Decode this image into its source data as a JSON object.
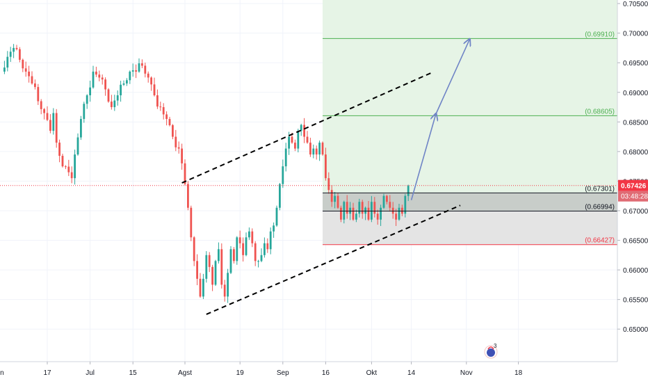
{
  "chart_data": {
    "type": "candlestick",
    "title": "",
    "xlabel": "",
    "ylabel": "",
    "ylim": [
      0.6445,
      0.7056
    ],
    "y_ticks": [
      0.705,
      0.7,
      0.695,
      0.69,
      0.685,
      0.68,
      0.675,
      0.67,
      0.665,
      0.66,
      0.655,
      0.65
    ],
    "y_tick_labels": [
      "0.70500",
      "0.70000",
      "0.69500",
      "0.69000",
      "0.68500",
      "0.68000",
      "0.67500",
      "0.67000",
      "0.66500",
      "0.66000",
      "0.65500",
      "0.65000"
    ],
    "x_ticks": [
      {
        "label": "Jun",
        "day": -1
      },
      {
        "label": "17",
        "day": 15
      },
      {
        "label": "Jul",
        "day": 29
      },
      {
        "label": "15",
        "day": 43
      },
      {
        "label": "Agst",
        "day": 60
      },
      {
        "label": "19",
        "day": 78
      },
      {
        "label": "Sep",
        "day": 92
      },
      {
        "label": "16",
        "day": 106
      },
      {
        "label": "Okt",
        "day": 121
      },
      {
        "label": "14",
        "day": 134
      },
      {
        "label": "Nov",
        "day": 152
      },
      {
        "label": "18",
        "day": 169
      }
    ],
    "closes": [
      {
        "day": 0,
        "v": 0.6935
      },
      {
        "day": 2,
        "v": 0.696
      },
      {
        "day": 4,
        "v": 0.6975
      },
      {
        "day": 6,
        "v": 0.6955
      },
      {
        "day": 8,
        "v": 0.6935
      },
      {
        "day": 10,
        "v": 0.6915
      },
      {
        "day": 12,
        "v": 0.6885
      },
      {
        "day": 14,
        "v": 0.6865
      },
      {
        "day": 16,
        "v": 0.6835
      },
      {
        "day": 17,
        "v": 0.6865
      },
      {
        "day": 18,
        "v": 0.6815
      },
      {
        "day": 20,
        "v": 0.6775
      },
      {
        "day": 22,
        "v": 0.6765
      },
      {
        "day": 23,
        "v": 0.6755
      },
      {
        "day": 24,
        "v": 0.6795
      },
      {
        "day": 26,
        "v": 0.6855
      },
      {
        "day": 28,
        "v": 0.6895
      },
      {
        "day": 30,
        "v": 0.6935
      },
      {
        "day": 32,
        "v": 0.6925
      },
      {
        "day": 34,
        "v": 0.6905
      },
      {
        "day": 36,
        "v": 0.6875
      },
      {
        "day": 38,
        "v": 0.6895
      },
      {
        "day": 40,
        "v": 0.6915
      },
      {
        "day": 42,
        "v": 0.6935
      },
      {
        "day": 44,
        "v": 0.6935
      },
      {
        "day": 46,
        "v": 0.6945
      },
      {
        "day": 48,
        "v": 0.6925
      },
      {
        "day": 50,
        "v": 0.6895
      },
      {
        "day": 52,
        "v": 0.6875
      },
      {
        "day": 54,
        "v": 0.6855
      },
      {
        "day": 56,
        "v": 0.6825
      },
      {
        "day": 58,
        "v": 0.6805
      },
      {
        "day": 59,
        "v": 0.678
      },
      {
        "day": 60,
        "v": 0.6745
      },
      {
        "day": 61,
        "v": 0.6705
      },
      {
        "day": 62,
        "v": 0.6655
      },
      {
        "day": 63,
        "v": 0.6615
      },
      {
        "day": 64,
        "v": 0.6585
      },
      {
        "day": 65,
        "v": 0.6555
      },
      {
        "day": 66,
        "v": 0.6585
      },
      {
        "day": 67,
        "v": 0.6625
      },
      {
        "day": 68,
        "v": 0.6605
      },
      {
        "day": 69,
        "v": 0.6575
      },
      {
        "day": 70,
        "v": 0.6615
      },
      {
        "day": 71,
        "v": 0.6635
      },
      {
        "day": 72,
        "v": 0.6575
      },
      {
        "day": 73,
        "v": 0.6555
      },
      {
        "day": 74,
        "v": 0.6595
      },
      {
        "day": 75,
        "v": 0.6635
      },
      {
        "day": 76,
        "v": 0.6615
      },
      {
        "day": 77,
        "v": 0.6655
      },
      {
        "day": 78,
        "v": 0.6645
      },
      {
        "day": 79,
        "v": 0.6625
      },
      {
        "day": 80,
        "v": 0.6655
      },
      {
        "day": 81,
        "v": 0.6665
      },
      {
        "day": 82,
        "v": 0.6645
      },
      {
        "day": 83,
        "v": 0.6615
      },
      {
        "day": 84,
        "v": 0.6615
      },
      {
        "day": 85,
        "v": 0.6625
      },
      {
        "day": 86,
        "v": 0.6645
      },
      {
        "day": 87,
        "v": 0.6635
      },
      {
        "day": 88,
        "v": 0.6665
      },
      {
        "day": 89,
        "v": 0.6675
      },
      {
        "day": 90,
        "v": 0.6705
      },
      {
        "day": 91,
        "v": 0.6745
      },
      {
        "day": 92,
        "v": 0.6775
      },
      {
        "day": 93,
        "v": 0.6805
      },
      {
        "day": 94,
        "v": 0.6825
      },
      {
        "day": 95,
        "v": 0.6815
      },
      {
        "day": 96,
        "v": 0.6805
      },
      {
        "day": 97,
        "v": 0.6835
      },
      {
        "day": 98,
        "v": 0.6845
      },
      {
        "day": 99,
        "v": 0.6825
      },
      {
        "day": 100,
        "v": 0.6815
      },
      {
        "day": 101,
        "v": 0.6795
      },
      {
        "day": 102,
        "v": 0.6805
      },
      {
        "day": 103,
        "v": 0.6795
      },
      {
        "day": 104,
        "v": 0.6815
      },
      {
        "day": 105,
        "v": 0.6795
      },
      {
        "day": 106,
        "v": 0.6755
      },
      {
        "day": 107,
        "v": 0.6735
      },
      {
        "day": 108,
        "v": 0.6715
      },
      {
        "day": 109,
        "v": 0.6725
      },
      {
        "day": 110,
        "v": 0.6705
      },
      {
        "day": 111,
        "v": 0.6685
      },
      {
        "day": 112,
        "v": 0.6715
      },
      {
        "day": 113,
        "v": 0.6695
      },
      {
        "day": 114,
        "v": 0.6705
      },
      {
        "day": 115,
        "v": 0.6685
      },
      {
        "day": 116,
        "v": 0.6695
      },
      {
        "day": 117,
        "v": 0.6715
      },
      {
        "day": 118,
        "v": 0.6695
      },
      {
        "day": 119,
        "v": 0.6705
      },
      {
        "day": 120,
        "v": 0.6685
      },
      {
        "day": 121,
        "v": 0.6715
      },
      {
        "day": 122,
        "v": 0.6695
      },
      {
        "day": 123,
        "v": 0.6685
      },
      {
        "day": 124,
        "v": 0.6705
      },
      {
        "day": 125,
        "v": 0.6725
      },
      {
        "day": 126,
        "v": 0.6715
      },
      {
        "day": 127,
        "v": 0.6705
      },
      {
        "day": 128,
        "v": 0.6695
      },
      {
        "day": 129,
        "v": 0.6685
      },
      {
        "day": 130,
        "v": 0.6705
      },
      {
        "day": 131,
        "v": 0.6695
      },
      {
        "day": 132,
        "v": 0.6725
      },
      {
        "day": 133,
        "v": 0.6742
      }
    ],
    "price_levels": [
      {
        "name": "target-2",
        "label": "(0.69910)",
        "value": 0.6991,
        "color": "#4caf50"
      },
      {
        "name": "target-1",
        "label": "(0.68605)",
        "value": 0.68605,
        "color": "#4caf50"
      },
      {
        "name": "entry",
        "label": "(0.67301)",
        "value": 0.67301,
        "color": "#131722"
      },
      {
        "name": "mid",
        "label": "(0.66994)",
        "value": 0.66994,
        "color": "#131722"
      },
      {
        "name": "stop",
        "label": "(0.66427)",
        "value": 0.66427,
        "color": "#f23645"
      }
    ],
    "last_price": {
      "label": "0.67426",
      "value": 0.67426,
      "color": "#f23645"
    },
    "countdown": "03:48:28",
    "badge": "3",
    "channel_upper": [
      {
        "day": 59,
        "v": 0.6747
      },
      {
        "day": 141,
        "v": 0.6934
      }
    ],
    "channel_lower": [
      {
        "day": 67,
        "v": 0.6525
      },
      {
        "day": 150,
        "v": 0.6709
      }
    ],
    "projection": [
      {
        "day": 134,
        "v": 0.6718
      },
      {
        "day": 142,
        "v": 0.6863
      },
      {
        "day": 153,
        "v": 0.6989
      }
    ],
    "target_zone_start_day": 105,
    "colors": {
      "up": "#26a69a",
      "down": "#ef5350",
      "target_zone": "#e6f4e6",
      "loss_zone": "#e4e4e4",
      "upper_band": "#c8cdc9",
      "channel": "#000000",
      "projection": "#6f84c6",
      "grid": "#f0f3fa",
      "axis_text": "#131722"
    }
  }
}
